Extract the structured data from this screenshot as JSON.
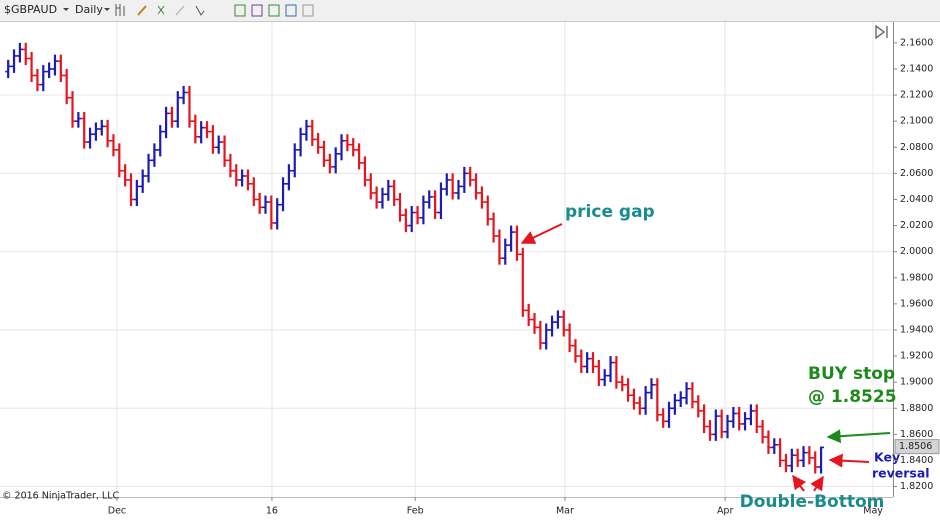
{
  "toolbar": {
    "symbol": "$GBPAUD",
    "interval": "Daily"
  },
  "chart_data": {
    "type": "ohlc",
    "up_color": "#1c1cb4",
    "down_color": "#e5141e",
    "grid": true,
    "open": [
      2.138,
      2.142,
      2.15,
      2.155,
      2.148,
      2.135,
      2.128,
      2.138,
      2.14,
      2.146,
      2.135,
      2.118,
      2.1,
      2.102,
      2.084,
      2.09,
      2.094,
      2.096,
      2.085,
      2.078,
      2.062,
      2.055,
      2.04,
      2.05,
      2.058,
      2.07,
      2.078,
      2.092,
      2.106,
      2.1,
      2.118,
      2.122,
      2.1,
      2.088,
      2.095,
      2.092,
      2.08,
      2.084,
      2.07,
      2.062,
      2.055,
      2.058,
      2.052,
      2.04,
      2.034,
      2.038,
      2.022,
      2.036,
      2.052,
      2.062,
      2.078,
      2.09,
      2.096,
      2.086,
      2.08,
      2.07,
      2.065,
      2.075,
      2.085,
      2.082,
      2.078,
      2.068,
      2.055,
      2.045,
      2.038,
      2.044,
      2.05,
      2.04,
      2.028,
      2.02,
      2.03,
      2.026,
      2.038,
      2.042,
      2.03,
      2.048,
      2.055,
      2.045,
      2.05,
      2.06,
      2.055,
      2.045,
      2.038,
      2.025,
      2.012,
      1.995,
      2.005,
      2.015,
      1.998,
      1.955,
      1.948,
      1.942,
      1.93,
      1.94,
      1.946,
      1.95,
      1.94,
      1.928,
      1.92,
      1.912,
      1.918,
      1.912,
      1.902,
      1.905,
      1.915,
      1.9,
      1.898,
      1.89,
      1.884,
      1.88,
      1.892,
      1.898,
      1.875,
      1.87,
      1.88,
      1.886,
      1.888,
      1.895,
      1.885,
      1.878,
      1.866,
      1.86,
      1.874,
      1.862,
      1.87,
      1.876,
      1.868,
      1.872,
      1.878,
      1.866,
      1.858,
      1.85,
      1.852,
      1.84,
      1.836,
      1.844,
      1.84,
      1.846,
      1.842,
      1.835
    ],
    "high": [
      2.147,
      2.155,
      2.16,
      2.16,
      2.153,
      2.14,
      2.143,
      2.145,
      2.151,
      2.151,
      2.14,
      2.123,
      2.107,
      2.107,
      2.095,
      2.099,
      2.101,
      2.101,
      2.09,
      2.083,
      2.067,
      2.06,
      2.055,
      2.063,
      2.075,
      2.083,
      2.097,
      2.111,
      2.111,
      2.123,
      2.127,
      2.127,
      2.105,
      2.1,
      2.1,
      2.097,
      2.089,
      2.089,
      2.075,
      2.067,
      2.063,
      2.063,
      2.057,
      2.045,
      2.043,
      2.043,
      2.041,
      2.057,
      2.067,
      2.083,
      2.095,
      2.101,
      2.101,
      2.091,
      2.085,
      2.075,
      2.08,
      2.09,
      2.09,
      2.087,
      2.083,
      2.073,
      2.06,
      2.05,
      2.049,
      2.055,
      2.055,
      2.045,
      2.033,
      2.035,
      2.035,
      2.043,
      2.047,
      2.047,
      2.053,
      2.06,
      2.06,
      2.055,
      2.065,
      2.065,
      2.06,
      2.05,
      2.043,
      2.03,
      2.017,
      2.01,
      2.02,
      2.02,
      2.003,
      1.96,
      1.953,
      1.947,
      1.945,
      1.951,
      1.955,
      1.955,
      1.945,
      1.933,
      1.925,
      1.923,
      1.923,
      1.917,
      1.91,
      1.92,
      1.92,
      1.905,
      1.903,
      1.895,
      1.889,
      1.897,
      1.903,
      1.903,
      1.88,
      1.885,
      1.891,
      1.893,
      1.9,
      1.9,
      1.89,
      1.883,
      1.871,
      1.879,
      1.879,
      1.875,
      1.881,
      1.881,
      1.877,
      1.883,
      1.883,
      1.871,
      1.863,
      1.857,
      1.857,
      1.845,
      1.849,
      1.849,
      1.851,
      1.851,
      1.847,
      1.8506
    ],
    "low": [
      2.133,
      2.137,
      2.145,
      2.143,
      2.13,
      2.123,
      2.123,
      2.133,
      2.135,
      2.13,
      2.113,
      2.095,
      2.095,
      2.079,
      2.079,
      2.085,
      2.089,
      2.08,
      2.073,
      2.057,
      2.05,
      2.035,
      2.035,
      2.045,
      2.053,
      2.065,
      2.073,
      2.087,
      2.095,
      2.095,
      2.113,
      2.095,
      2.083,
      2.083,
      2.087,
      2.075,
      2.075,
      2.065,
      2.057,
      2.05,
      2.05,
      2.047,
      2.035,
      2.029,
      2.029,
      2.017,
      2.017,
      2.031,
      2.047,
      2.057,
      2.073,
      2.085,
      2.081,
      2.075,
      2.065,
      2.06,
      2.06,
      2.07,
      2.077,
      2.073,
      2.063,
      2.05,
      2.04,
      2.033,
      2.033,
      2.039,
      2.035,
      2.023,
      2.015,
      2.015,
      2.021,
      2.021,
      2.033,
      2.025,
      2.025,
      2.043,
      2.04,
      2.04,
      2.045,
      2.05,
      2.04,
      2.033,
      2.02,
      2.007,
      1.99,
      1.99,
      2.0,
      1.993,
      1.95,
      1.943,
      1.937,
      1.925,
      1.925,
      1.935,
      1.941,
      1.935,
      1.923,
      1.915,
      1.907,
      1.907,
      1.907,
      1.897,
      1.897,
      1.9,
      1.895,
      1.893,
      1.885,
      1.879,
      1.875,
      1.875,
      1.887,
      1.87,
      1.865,
      1.865,
      1.875,
      1.881,
      1.883,
      1.88,
      1.873,
      1.861,
      1.855,
      1.855,
      1.857,
      1.857,
      1.865,
      1.863,
      1.863,
      1.867,
      1.861,
      1.853,
      1.845,
      1.845,
      1.835,
      1.831,
      1.831,
      1.835,
      1.835,
      1.837,
      1.83,
      1.83
    ],
    "close": [
      2.142,
      2.15,
      2.155,
      2.148,
      2.135,
      2.128,
      2.138,
      2.14,
      2.146,
      2.135,
      2.118,
      2.1,
      2.102,
      2.084,
      2.09,
      2.094,
      2.096,
      2.085,
      2.078,
      2.062,
      2.055,
      2.04,
      2.05,
      2.058,
      2.07,
      2.078,
      2.092,
      2.106,
      2.1,
      2.118,
      2.122,
      2.1,
      2.088,
      2.095,
      2.092,
      2.08,
      2.084,
      2.07,
      2.062,
      2.055,
      2.058,
      2.052,
      2.04,
      2.034,
      2.038,
      2.022,
      2.036,
      2.052,
      2.062,
      2.078,
      2.09,
      2.096,
      2.086,
      2.08,
      2.07,
      2.065,
      2.075,
      2.085,
      2.082,
      2.078,
      2.068,
      2.055,
      2.045,
      2.038,
      2.044,
      2.05,
      2.04,
      2.028,
      2.02,
      2.03,
      2.026,
      2.038,
      2.042,
      2.03,
      2.048,
      2.055,
      2.045,
      2.05,
      2.06,
      2.055,
      2.045,
      2.038,
      2.025,
      2.012,
      1.995,
      2.005,
      2.015,
      1.998,
      1.955,
      1.948,
      1.942,
      1.93,
      1.94,
      1.946,
      1.95,
      1.94,
      1.928,
      1.92,
      1.912,
      1.918,
      1.912,
      1.902,
      1.905,
      1.915,
      1.9,
      1.898,
      1.89,
      1.884,
      1.88,
      1.892,
      1.898,
      1.875,
      1.87,
      1.88,
      1.886,
      1.888,
      1.895,
      1.885,
      1.878,
      1.866,
      1.86,
      1.874,
      1.862,
      1.87,
      1.876,
      1.868,
      1.872,
      1.878,
      1.866,
      1.858,
      1.85,
      1.852,
      1.84,
      1.836,
      1.844,
      1.84,
      1.846,
      1.842,
      1.835,
      1.85
    ],
    "last_price": 1.8506,
    "xlim": [
      -1.4,
      151.3
    ],
    "xticks": [
      {
        "value": 18.6,
        "label": "Dec"
      },
      {
        "value": 45.1,
        "label": "16"
      },
      {
        "value": 69.6,
        "label": "Feb"
      },
      {
        "value": 95.2,
        "label": "Mar"
      },
      {
        "value": 122.6,
        "label": "Apr"
      },
      {
        "value": 147.9,
        "label": "May"
      }
    ],
    "ylim": [
      1.812,
      2.176
    ],
    "yticks": [
      {
        "value": 1.82,
        "label": "1.8200"
      },
      {
        "value": 1.84,
        "label": "1.8400"
      },
      {
        "value": 1.86,
        "label": "1.8600"
      },
      {
        "value": 1.88,
        "label": "1.8800"
      },
      {
        "value": 1.9,
        "label": "1.9000"
      },
      {
        "value": 1.92,
        "label": "1.9200"
      },
      {
        "value": 1.94,
        "label": "1.9400"
      },
      {
        "value": 1.96,
        "label": "1.9600"
      },
      {
        "value": 1.98,
        "label": "1.9800"
      },
      {
        "value": 2.0,
        "label": "2.0000"
      },
      {
        "value": 2.02,
        "label": "2.0200"
      },
      {
        "value": 2.04,
        "label": "2.0400"
      },
      {
        "value": 2.06,
        "label": "2.0600"
      },
      {
        "value": 2.08,
        "label": "2.0800"
      },
      {
        "value": 2.1,
        "label": "2.1000"
      },
      {
        "value": 2.12,
        "label": "2.1200"
      },
      {
        "value": 2.14,
        "label": "2.1400"
      },
      {
        "value": 2.16,
        "label": "2.1600"
      }
    ],
    "annotations": {
      "price_gap": "price gap",
      "buy_stop": [
        "BUY stop",
        "@ 1.8525"
      ],
      "key_reversal": [
        "Key",
        "reversal"
      ],
      "double_bottom": "Double-Bottom"
    },
    "copyright": "© 2016 NinjaTrader, LLC"
  }
}
